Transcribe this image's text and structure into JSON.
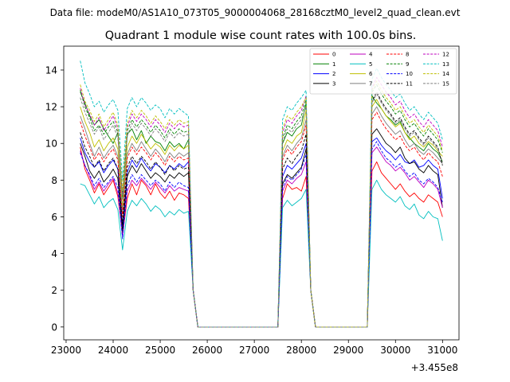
{
  "chart_data": {
    "type": "line",
    "suptitle": "Data file: modeM0/AS1A10_073T05_9000004068_28168cztM0_level2_quad_clean.evt",
    "title": "Quadrant 1 module wise count rates with 100.0s bins.",
    "xlabel": "",
    "ylabel": "",
    "x_offset_label": "+3.455e8",
    "xlim": [
      22950,
      31350
    ],
    "ylim": [
      -0.7,
      15.3
    ],
    "xticks": [
      23000,
      24000,
      25000,
      26000,
      27000,
      28000,
      29000,
      30000,
      31000
    ],
    "yticks": [
      0,
      2,
      4,
      6,
      8,
      10,
      12,
      14
    ],
    "legend_position": "top-right",
    "x": [
      23300,
      23400,
      23500,
      23600,
      23700,
      23800,
      23900,
      24000,
      24100,
      24200,
      24300,
      24400,
      24500,
      24600,
      24700,
      24800,
      24900,
      25000,
      25100,
      25200,
      25300,
      25400,
      25500,
      25600,
      25700,
      25800,
      27500,
      27600,
      27700,
      27800,
      27900,
      28000,
      28100,
      28200,
      28300,
      29400,
      29500,
      29600,
      29700,
      29800,
      29900,
      30000,
      30100,
      30200,
      30300,
      30400,
      30500,
      30600,
      30700,
      30800,
      30900,
      31000
    ],
    "series": [
      {
        "name": "0",
        "color": "#ff0000",
        "dash": false,
        "values": [
          9.8,
          8.6,
          8.0,
          7.3,
          7.8,
          7.2,
          7.6,
          8.0,
          7.1,
          5.0,
          7.0,
          7.8,
          7.2,
          8.0,
          7.7,
          7.2,
          7.8,
          7.3,
          7.0,
          7.4,
          6.9,
          7.3,
          7.2,
          7.0,
          2.0,
          0.0,
          0.0,
          7.0,
          7.8,
          7.5,
          7.6,
          7.4,
          8.2,
          2.0,
          0.0,
          0.0,
          8.5,
          9.0,
          8.4,
          8.1,
          7.8,
          7.5,
          7.8,
          7.4,
          7.1,
          7.3,
          7.0,
          6.8,
          7.2,
          7.0,
          6.8,
          6.0
        ]
      },
      {
        "name": "1",
        "color": "#008000",
        "dash": false,
        "values": [
          12.8,
          12.2,
          11.5,
          11.0,
          11.3,
          10.8,
          10.4,
          10.0,
          10.6,
          7.0,
          10.5,
          10.8,
          10.2,
          10.7,
          10.0,
          10.4,
          10.1,
          10.0,
          9.6,
          10.1,
          9.8,
          10.0,
          9.7,
          10.2,
          2.0,
          0.0,
          0.0,
          10.0,
          10.6,
          10.4,
          10.8,
          11.0,
          12.2,
          2.0,
          0.0,
          0.0,
          12.6,
          12.2,
          11.9,
          11.5,
          11.3,
          11.0,
          11.2,
          10.6,
          10.3,
          10.0,
          9.8,
          9.6,
          10.0,
          9.7,
          9.5,
          9.0
        ]
      },
      {
        "name": "2",
        "color": "#0000ff",
        "dash": false,
        "values": [
          10.3,
          9.5,
          9.0,
          8.7,
          9.0,
          8.4,
          8.8,
          9.1,
          8.6,
          5.5,
          8.4,
          9.1,
          8.7,
          9.2,
          8.8,
          8.5,
          8.9,
          8.7,
          8.4,
          8.8,
          8.6,
          8.9,
          8.7,
          9.0,
          2.0,
          0.0,
          0.0,
          8.2,
          8.8,
          8.6,
          8.9,
          9.2,
          10.0,
          2.0,
          0.0,
          0.0,
          10.1,
          10.3,
          9.9,
          9.6,
          9.4,
          9.1,
          9.4,
          9.0,
          8.9,
          9.1,
          8.7,
          8.8,
          9.1,
          8.8,
          8.6,
          7.0
        ]
      },
      {
        "name": "3",
        "color": "#000000",
        "dash": false,
        "values": [
          10.0,
          9.3,
          8.5,
          8.1,
          8.5,
          7.9,
          8.2,
          8.6,
          8.1,
          5.2,
          8.2,
          8.8,
          8.4,
          8.9,
          8.5,
          8.1,
          8.4,
          8.2,
          7.9,
          8.3,
          8.1,
          8.4,
          8.2,
          8.4,
          2.0,
          0.0,
          0.0,
          7.8,
          8.3,
          8.1,
          8.4,
          8.7,
          9.7,
          2.0,
          0.0,
          0.0,
          10.5,
          10.8,
          10.4,
          10.0,
          9.8,
          9.5,
          9.8,
          9.2,
          8.9,
          9.0,
          8.6,
          8.4,
          8.8,
          8.5,
          8.3,
          6.5
        ]
      },
      {
        "name": "4",
        "color": "#bf00bf",
        "dash": false,
        "values": [
          9.6,
          8.8,
          8.2,
          7.5,
          7.9,
          7.4,
          7.8,
          8.1,
          7.3,
          4.9,
          7.4,
          8.0,
          7.7,
          8.1,
          7.8,
          7.5,
          7.9,
          7.6,
          7.3,
          7.7,
          7.4,
          7.6,
          7.5,
          7.4,
          2.0,
          0.0,
          0.0,
          7.4,
          8.0,
          7.8,
          8.1,
          8.3,
          9.0,
          2.0,
          0.0,
          0.0,
          9.5,
          9.8,
          9.4,
          9.0,
          8.8,
          8.5,
          8.7,
          8.4,
          8.0,
          8.2,
          7.9,
          7.6,
          8.0,
          7.8,
          7.5,
          6.5
        ]
      },
      {
        "name": "5",
        "color": "#00bfbf",
        "dash": false,
        "values": [
          7.8,
          7.7,
          7.2,
          6.7,
          7.1,
          6.5,
          6.8,
          7.0,
          6.4,
          4.2,
          6.3,
          6.9,
          6.6,
          7.0,
          6.7,
          6.3,
          6.6,
          6.4,
          6.0,
          6.3,
          6.1,
          6.4,
          6.2,
          6.3,
          2.0,
          0.0,
          0.0,
          6.5,
          6.9,
          6.6,
          6.8,
          7.0,
          7.5,
          2.0,
          0.0,
          0.0,
          7.5,
          8.0,
          7.5,
          7.2,
          7.0,
          6.8,
          7.1,
          6.6,
          6.4,
          6.7,
          6.1,
          5.9,
          6.3,
          6.0,
          5.9,
          4.7
        ]
      },
      {
        "name": "6",
        "color": "#bfbf00",
        "dash": false,
        "values": [
          12.0,
          11.2,
          10.6,
          9.8,
          10.2,
          9.6,
          10.0,
          10.3,
          9.7,
          6.5,
          9.8,
          10.4,
          10.0,
          10.5,
          10.1,
          9.7,
          10.0,
          9.8,
          9.4,
          9.9,
          9.6,
          9.9,
          9.7,
          9.9,
          2.0,
          0.0,
          0.0,
          9.6,
          10.2,
          10.0,
          10.4,
          10.6,
          11.8,
          2.0,
          0.0,
          0.0,
          12.0,
          12.4,
          11.9,
          11.5,
          11.2,
          10.9,
          11.1,
          10.6,
          10.2,
          10.4,
          10.0,
          9.8,
          10.1,
          9.9,
          9.6,
          9.3
        ]
      },
      {
        "name": "7",
        "color": "#7f7f7f",
        "dash": false,
        "values": [
          11.5,
          10.8,
          10.0,
          9.3,
          9.8,
          9.2,
          9.6,
          9.9,
          9.3,
          6.2,
          9.4,
          10.0,
          9.6,
          10.1,
          9.7,
          9.3,
          9.7,
          9.4,
          9.0,
          9.5,
          9.2,
          9.5,
          9.3,
          9.5,
          2.0,
          0.0,
          0.0,
          9.3,
          9.9,
          9.6,
          10.0,
          10.3,
          11.3,
          2.0,
          0.0,
          0.0,
          11.6,
          12.0,
          11.5,
          11.1,
          10.8,
          10.5,
          10.7,
          10.2,
          9.8,
          10.0,
          9.6,
          9.4,
          9.7,
          9.5,
          9.2,
          8.9
        ]
      },
      {
        "name": "8",
        "color": "#ff0000",
        "dash": true,
        "values": [
          11.2,
          10.4,
          9.8,
          9.1,
          9.5,
          9.0,
          9.4,
          9.7,
          9.1,
          6.0,
          9.2,
          9.8,
          9.4,
          9.8,
          9.5,
          9.1,
          9.5,
          9.2,
          8.8,
          9.3,
          9.0,
          9.3,
          9.1,
          9.2,
          2.0,
          0.0,
          0.0,
          9.1,
          9.7,
          9.4,
          9.8,
          10.1,
          11.0,
          2.0,
          0.0,
          0.0,
          11.3,
          11.7,
          11.2,
          10.8,
          10.5,
          10.2,
          10.4,
          9.9,
          9.6,
          9.8,
          9.4,
          9.1,
          9.5,
          9.2,
          9.0,
          8.2
        ]
      },
      {
        "name": "9",
        "color": "#008000",
        "dash": true,
        "values": [
          12.9,
          12.0,
          11.4,
          10.7,
          11.0,
          10.5,
          10.9,
          11.2,
          10.6,
          7.2,
          10.7,
          11.3,
          10.9,
          11.3,
          11.0,
          10.6,
          11.0,
          10.7,
          10.3,
          10.8,
          10.5,
          10.8,
          10.6,
          10.7,
          2.0,
          0.0,
          0.0,
          10.3,
          11.0,
          10.8,
          11.2,
          11.5,
          12.4,
          2.0,
          0.0,
          0.0,
          12.8,
          13.2,
          12.7,
          12.3,
          12.0,
          11.6,
          11.8,
          11.3,
          10.9,
          11.1,
          10.7,
          10.4,
          10.8,
          10.5,
          10.2,
          9.5
        ]
      },
      {
        "name": "10",
        "color": "#0000ff",
        "dash": true,
        "values": [
          9.5,
          8.8,
          8.3,
          7.7,
          8.1,
          7.6,
          7.9,
          8.2,
          7.6,
          4.8,
          7.7,
          8.3,
          7.9,
          8.3,
          8.0,
          7.7,
          8.0,
          7.8,
          7.4,
          7.9,
          7.6,
          7.9,
          7.7,
          7.6,
          2.0,
          0.0,
          0.0,
          7.6,
          8.2,
          8.0,
          8.3,
          8.6,
          9.4,
          2.0,
          0.0,
          0.0,
          9.7,
          10.1,
          9.6,
          9.2,
          9.0,
          8.7,
          8.9,
          8.5,
          8.2,
          8.4,
          8.0,
          7.8,
          8.1,
          7.9,
          7.6,
          6.8
        ]
      },
      {
        "name": "11",
        "color": "#000000",
        "dash": true,
        "values": [
          10.6,
          9.8,
          9.3,
          8.7,
          9.1,
          8.5,
          8.9,
          9.2,
          8.6,
          5.6,
          8.7,
          9.3,
          8.9,
          9.3,
          9.0,
          8.6,
          9.0,
          8.7,
          8.3,
          8.8,
          8.5,
          8.8,
          8.6,
          8.7,
          2.0,
          0.0,
          0.0,
          8.6,
          9.2,
          8.9,
          9.3,
          9.6,
          10.5,
          2.0,
          0.0,
          0.0,
          12.3,
          12.8,
          12.3,
          11.9,
          11.6,
          11.2,
          11.4,
          10.9,
          10.5,
          10.7,
          10.3,
          10.0,
          10.4,
          10.1,
          9.8,
          8.8
        ]
      },
      {
        "name": "12",
        "color": "#bf00bf",
        "dash": true,
        "values": [
          13.0,
          12.1,
          11.6,
          11.0,
          11.4,
          10.7,
          11.1,
          11.5,
          10.8,
          7.3,
          10.9,
          11.6,
          11.2,
          11.6,
          11.3,
          10.9,
          11.3,
          11.0,
          10.6,
          11.1,
          10.8,
          11.1,
          10.9,
          11.0,
          2.0,
          0.0,
          0.0,
          10.6,
          11.3,
          11.1,
          11.5,
          11.8,
          12.6,
          2.0,
          0.0,
          0.0,
          13.0,
          13.6,
          13.2,
          12.8,
          12.5,
          12.1,
          12.3,
          11.8,
          11.4,
          11.6,
          11.2,
          10.9,
          11.3,
          11.0,
          10.7,
          9.8
        ]
      },
      {
        "name": "13",
        "color": "#00bfbf",
        "dash": true,
        "values": [
          14.5,
          13.3,
          12.7,
          12.0,
          12.3,
          11.7,
          12.1,
          12.4,
          11.8,
          8.0,
          11.9,
          12.5,
          12.0,
          12.5,
          12.2,
          11.8,
          12.1,
          11.9,
          11.4,
          11.9,
          11.6,
          11.9,
          11.7,
          11.5,
          2.0,
          0.0,
          0.0,
          11.3,
          12.0,
          11.8,
          12.2,
          12.5,
          12.9,
          2.0,
          0.0,
          0.0,
          13.5,
          14.1,
          13.6,
          13.2,
          12.9,
          12.5,
          12.7,
          12.2,
          11.8,
          12.0,
          11.6,
          11.3,
          11.7,
          11.4,
          11.1,
          10.2
        ]
      },
      {
        "name": "14",
        "color": "#bfbf00",
        "dash": true,
        "values": [
          13.2,
          12.3,
          11.8,
          11.2,
          11.6,
          10.9,
          11.3,
          11.7,
          11.0,
          7.4,
          11.1,
          11.8,
          11.4,
          11.8,
          11.5,
          11.1,
          11.5,
          11.2,
          10.8,
          11.3,
          11.0,
          11.3,
          11.1,
          11.2,
          2.0,
          0.0,
          0.0,
          10.8,
          11.5,
          11.3,
          11.7,
          12.0,
          12.5,
          2.0,
          0.0,
          0.0,
          12.9,
          13.4,
          12.9,
          12.5,
          12.2,
          11.8,
          12.0,
          11.5,
          11.1,
          11.3,
          10.9,
          10.6,
          11.0,
          10.7,
          10.4,
          9.6
        ]
      },
      {
        "name": "15",
        "color": "#7f7f7f",
        "dash": true,
        "values": [
          12.5,
          11.7,
          11.1,
          10.5,
          10.9,
          10.2,
          10.6,
          11.0,
          10.3,
          6.9,
          10.4,
          11.1,
          10.7,
          11.1,
          10.8,
          10.4,
          10.8,
          10.5,
          10.1,
          10.6,
          10.3,
          10.6,
          10.4,
          10.5,
          2.0,
          0.0,
          0.0,
          10.1,
          10.8,
          10.6,
          11.0,
          11.3,
          12.0,
          2.0,
          0.0,
          0.0,
          12.2,
          12.7,
          12.2,
          11.8,
          11.5,
          11.1,
          11.3,
          10.8,
          10.4,
          10.6,
          10.2,
          9.9,
          10.3,
          10.0,
          9.7,
          9.0
        ]
      }
    ]
  }
}
